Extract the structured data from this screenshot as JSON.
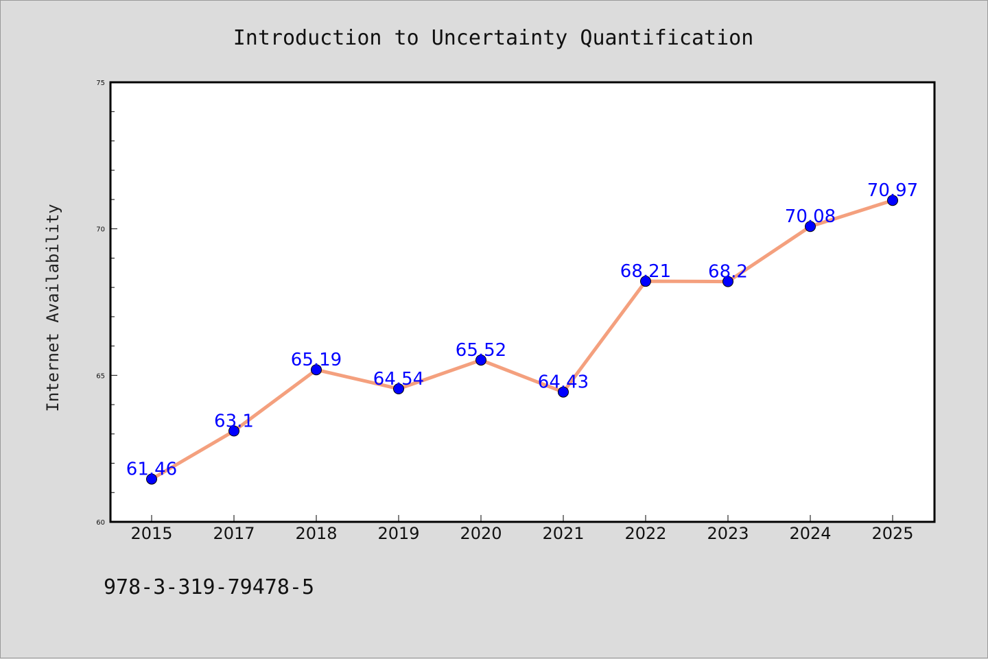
{
  "chart_data": {
    "type": "line",
    "title": "Introduction to Uncertainty Quantification",
    "xlabel": "",
    "ylabel": "Internet Availability",
    "categories": [
      "2015",
      "2017",
      "2018",
      "2019",
      "2020",
      "2021",
      "2022",
      "2023",
      "2024",
      "2025"
    ],
    "series": [
      {
        "values": [
          61.46,
          63.1,
          65.19,
          64.54,
          65.52,
          64.43,
          68.21,
          68.2,
          70.08,
          70.97
        ],
        "line_color": "#f4a07e",
        "marker_color": "#0000ff"
      }
    ],
    "ylim": [
      60,
      75
    ],
    "yticks": [
      60,
      65,
      70,
      75
    ],
    "yminor_step": 1,
    "data_labels": [
      "61.46",
      "63.1",
      "65.19",
      "64.54",
      "65.52",
      "64.43",
      "68.21",
      "68.2",
      "70.08",
      "70.97"
    ],
    "data_label_color": "#0000ff",
    "grid": false,
    "legend": "none"
  },
  "footer": {
    "isbn": "978-3-319-79478-5"
  },
  "colors": {
    "background": "#dcdcdc",
    "plot_area": "#ffffff"
  }
}
